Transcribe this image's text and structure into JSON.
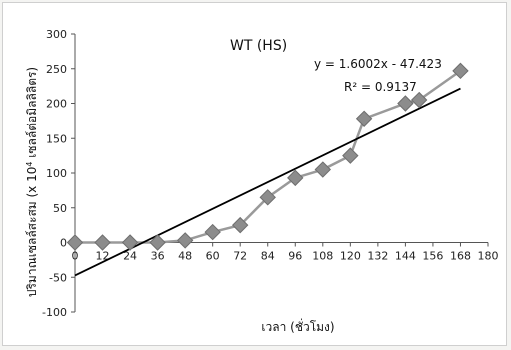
{
  "chart_data": {
    "type": "scatter",
    "title": "WT (HS)",
    "xlabel": "เวลา (ชั่วโมง)",
    "ylabel_line1": "ปริมาณเซลล์สะสม (x 10",
    "ylabel_sup": "4",
    "ylabel_line2": " เซลล์ต่อมิลลิลิตร)",
    "xlim": [
      0,
      180
    ],
    "ylim": [
      -100,
      300
    ],
    "xticks": [
      "0",
      "12",
      "24",
      "36",
      "48",
      "60",
      "72",
      "84",
      "96",
      "108",
      "120",
      "132",
      "144",
      "156",
      "168",
      "180"
    ],
    "yticks": [
      "-100",
      "-50",
      "0",
      "50",
      "100",
      "150",
      "200",
      "250",
      "300"
    ],
    "x": [
      0,
      12,
      24,
      36,
      48,
      60,
      72,
      84,
      96,
      108,
      120,
      126,
      144,
      150,
      168
    ],
    "y": [
      0,
      0,
      0,
      0,
      3,
      15,
      25,
      65,
      93,
      105,
      125,
      178,
      200,
      205,
      247
    ],
    "trendline": {
      "slope": 1.6002,
      "intercept": -47.423
    },
    "equation": "y = 1.6002x - 47.423",
    "r_squared_label": "R² = 0.9137",
    "marker_color": "#8c8c8c",
    "line_color": "#9a9a9a",
    "trend_color": "#000000"
  }
}
